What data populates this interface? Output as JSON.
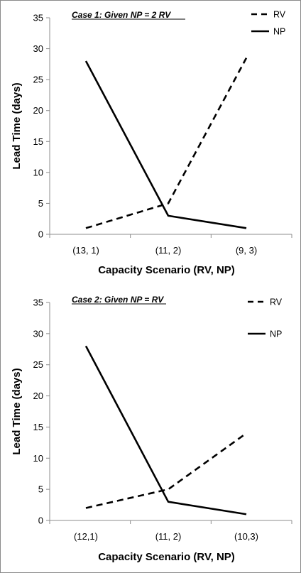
{
  "chart_data": [
    {
      "type": "line",
      "title": "Case 1: Given NP = 2 RV",
      "xlabel": "Capacity Scenario (RV, NP)",
      "ylabel": "Lead Time (days)",
      "ylim": [
        0,
        35
      ],
      "yticks": [
        0,
        5,
        10,
        15,
        20,
        25,
        30,
        35
      ],
      "categories": [
        "(13, 1)",
        "(11, 2)",
        "(9, 3)"
      ],
      "series": [
        {
          "name": "RV",
          "style": "dashed",
          "values": [
            1,
            5,
            28.5
          ]
        },
        {
          "name": "NP",
          "style": "solid",
          "values": [
            28,
            3,
            1
          ]
        }
      ],
      "legend": "top-right",
      "grid": false
    },
    {
      "type": "line",
      "title": "Case 2: Given NP = RV",
      "xlabel": "Capacity Scenario (RV, NP)",
      "ylabel": "Lead Time (days)",
      "ylim": [
        0,
        35
      ],
      "yticks": [
        0,
        5,
        10,
        15,
        20,
        25,
        30,
        35
      ],
      "categories": [
        "(12,1)",
        "(11, 2)",
        "(10,3)"
      ],
      "series": [
        {
          "name": "RV",
          "style": "dashed",
          "values": [
            2,
            5,
            14
          ]
        },
        {
          "name": "NP",
          "style": "solid",
          "values": [
            28,
            3,
            1
          ]
        }
      ],
      "legend": "top-right",
      "grid": false
    }
  ]
}
